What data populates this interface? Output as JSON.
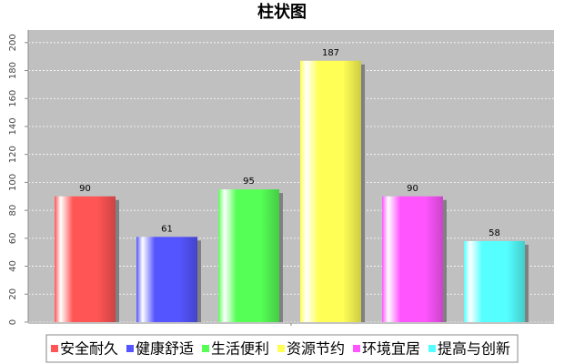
{
  "chart_data": {
    "type": "bar",
    "title": "柱状图",
    "categories": [
      null
    ],
    "series": [
      {
        "name": "安全耐久",
        "color": "#ff5555",
        "values": [
          90
        ]
      },
      {
        "name": "健康舒适",
        "color": "#5555ff",
        "values": [
          61
        ]
      },
      {
        "name": "生活便利",
        "color": "#55ff55",
        "values": [
          95
        ]
      },
      {
        "name": "资源节约",
        "color": "#ffff55",
        "values": [
          187
        ]
      },
      {
        "name": "环境宜居",
        "color": "#ff55ff",
        "values": [
          90
        ]
      },
      {
        "name": "提高与创新",
        "color": "#55ffff",
        "values": [
          58
        ]
      }
    ],
    "ylim": [
      0,
      209
    ],
    "yticks": [
      0,
      20,
      40,
      60,
      80,
      100,
      120,
      140,
      160,
      180,
      200
    ],
    "grid": true,
    "legend": "bottom"
  }
}
